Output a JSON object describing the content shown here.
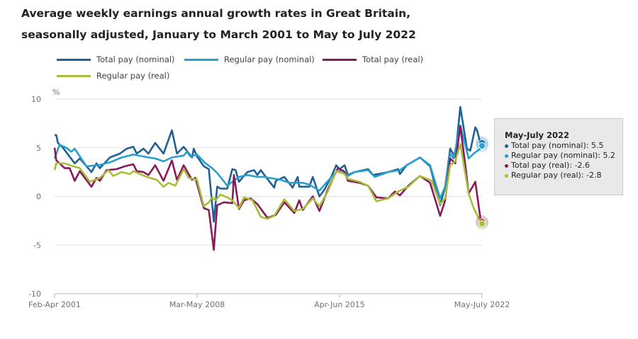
{
  "title": "Average weekly earnings annual growth rates in Great Britain, seasonally adjusted, January to March 2001 to May to July 2022",
  "chart_data": {
    "type": "line",
    "title": "Average weekly earnings annual growth rates in Great Britain, seasonally adjusted, January to March 2001 to May to July 2022",
    "ylabel": "%",
    "ylim": [
      -10,
      10
    ],
    "yticks": [
      10,
      5,
      0,
      -5,
      -10
    ],
    "xlim": [
      "2001-04",
      "2022-07"
    ],
    "xticks": [
      {
        "x": "2001-04",
        "label": "Feb-Apr 2001"
      },
      {
        "x": "2008-05",
        "label": "Mar-May 2008"
      },
      {
        "x": "2015-06",
        "label": "Apr-Jun 2015"
      },
      {
        "x": "2022-07",
        "label": "May-July 2022"
      }
    ],
    "grid": "horizontal",
    "legend": "top",
    "series": [
      {
        "name": "Total pay (nominal)",
        "color": "#206095",
        "points": [
          [
            "2001-04",
            6.3
          ],
          [
            "2001-05",
            6.3
          ],
          [
            "2001-06",
            5.5
          ],
          [
            "2001-09",
            5.0
          ],
          [
            "2002-04",
            3.4
          ],
          [
            "2002-07",
            3.9
          ],
          [
            "2003-02",
            2.5
          ],
          [
            "2003-05",
            3.4
          ],
          [
            "2003-07",
            2.9
          ],
          [
            "2004-01",
            4.0
          ],
          [
            "2004-07",
            4.4
          ],
          [
            "2004-11",
            4.9
          ],
          [
            "2005-03",
            5.1
          ],
          [
            "2005-05",
            4.4
          ],
          [
            "2005-09",
            4.9
          ],
          [
            "2005-12",
            4.4
          ],
          [
            "2006-04",
            5.5
          ],
          [
            "2006-09",
            4.4
          ],
          [
            "2007-02",
            6.8
          ],
          [
            "2007-05",
            4.4
          ],
          [
            "2007-09",
            5.1
          ],
          [
            "2008-02",
            4.0
          ],
          [
            "2008-03",
            4.9
          ],
          [
            "2008-05",
            4.1
          ],
          [
            "2008-09",
            3.1
          ],
          [
            "2008-12",
            2.8
          ],
          [
            "2009-03",
            -2.6
          ],
          [
            "2009-05",
            1.0
          ],
          [
            "2009-07",
            0.8
          ],
          [
            "2009-11",
            0.8
          ],
          [
            "2010-02",
            2.8
          ],
          [
            "2010-04",
            2.7
          ],
          [
            "2010-06",
            1.5
          ],
          [
            "2010-11",
            2.5
          ],
          [
            "2011-03",
            2.7
          ],
          [
            "2011-05",
            2.2
          ],
          [
            "2011-07",
            2.7
          ],
          [
            "2011-10",
            2.0
          ],
          [
            "2012-03",
            0.9
          ],
          [
            "2012-04",
            1.6
          ],
          [
            "2012-09",
            2.0
          ],
          [
            "2013-02",
            0.9
          ],
          [
            "2013-05",
            2.0
          ],
          [
            "2013-06",
            1.0
          ],
          [
            "2013-12",
            1.0
          ],
          [
            "2014-02",
            2.0
          ],
          [
            "2014-06",
            0.0
          ],
          [
            "2014-09",
            0.7
          ],
          [
            "2015-01",
            2.0
          ],
          [
            "2015-04",
            3.2
          ],
          [
            "2015-06",
            2.8
          ],
          [
            "2015-09",
            3.2
          ],
          [
            "2015-11",
            2.2
          ],
          [
            "2016-03",
            2.5
          ],
          [
            "2016-11",
            2.8
          ],
          [
            "2017-02",
            2.2
          ],
          [
            "2017-11",
            2.5
          ],
          [
            "2018-05",
            2.8
          ],
          [
            "2018-06",
            2.3
          ],
          [
            "2018-10",
            3.2
          ],
          [
            "2019-06",
            4.0
          ],
          [
            "2019-12",
            3.1
          ],
          [
            "2020-06",
            -0.9
          ],
          [
            "2020-09",
            1.0
          ],
          [
            "2020-12",
            4.9
          ],
          [
            "2021-03",
            4.0
          ],
          [
            "2021-06",
            9.2
          ],
          [
            "2021-10",
            4.9
          ],
          [
            "2021-12",
            4.7
          ],
          [
            "2022-03",
            7.1
          ],
          [
            "2022-04",
            6.8
          ],
          [
            "2022-06",
            5.5
          ],
          [
            "2022-07",
            5.5
          ]
        ]
      },
      {
        "name": "Regular pay (nominal)",
        "color": "#27a0cc",
        "points": [
          [
            "2001-04",
            3.9
          ],
          [
            "2001-07",
            5.3
          ],
          [
            "2001-11",
            5.0
          ],
          [
            "2002-02",
            4.6
          ],
          [
            "2002-04",
            4.9
          ],
          [
            "2002-11",
            3.1
          ],
          [
            "2003-06",
            3.2
          ],
          [
            "2004-01",
            3.5
          ],
          [
            "2004-08",
            4.0
          ],
          [
            "2005-03",
            4.3
          ],
          [
            "2005-12",
            4.0
          ],
          [
            "2006-04",
            3.9
          ],
          [
            "2006-09",
            3.6
          ],
          [
            "2007-02",
            4.0
          ],
          [
            "2007-09",
            4.2
          ],
          [
            "2007-11",
            4.6
          ],
          [
            "2008-01",
            4.1
          ],
          [
            "2008-05",
            4.3
          ],
          [
            "2008-10",
            3.4
          ],
          [
            "2009-02",
            2.9
          ],
          [
            "2009-05",
            2.4
          ],
          [
            "2009-11",
            1.1
          ],
          [
            "2010-02",
            1.5
          ],
          [
            "2010-06",
            2.0
          ],
          [
            "2010-11",
            2.2
          ],
          [
            "2011-05",
            2.0
          ],
          [
            "2011-09",
            2.0
          ],
          [
            "2012-07",
            1.7
          ],
          [
            "2012-12",
            1.4
          ],
          [
            "2013-08",
            1.4
          ],
          [
            "2013-12",
            1.2
          ],
          [
            "2014-06",
            0.6
          ],
          [
            "2014-10",
            1.4
          ],
          [
            "2015-04",
            2.5
          ],
          [
            "2015-08",
            2.7
          ],
          [
            "2015-11",
            2.1
          ],
          [
            "2016-03",
            2.5
          ],
          [
            "2016-11",
            2.7
          ],
          [
            "2017-03",
            2.0
          ],
          [
            "2017-11",
            2.5
          ],
          [
            "2018-06",
            2.7
          ],
          [
            "2018-10",
            3.2
          ],
          [
            "2019-06",
            4.0
          ],
          [
            "2019-12",
            3.2
          ],
          [
            "2020-06",
            -0.2
          ],
          [
            "2020-09",
            1.0
          ],
          [
            "2020-12",
            4.4
          ],
          [
            "2021-02",
            3.9
          ],
          [
            "2021-06",
            7.3
          ],
          [
            "2021-11",
            3.9
          ],
          [
            "2022-02",
            4.4
          ],
          [
            "2022-06",
            4.9
          ],
          [
            "2022-07",
            5.2
          ]
        ]
      },
      {
        "name": "Total pay (real)",
        "color": "#871a5b",
        "points": [
          [
            "2001-04",
            5.0
          ],
          [
            "2001-05",
            3.7
          ],
          [
            "2001-10",
            2.9
          ],
          [
            "2002-01",
            2.9
          ],
          [
            "2002-04",
            1.6
          ],
          [
            "2002-07",
            2.6
          ],
          [
            "2003-02",
            1.0
          ],
          [
            "2003-05",
            1.9
          ],
          [
            "2003-07",
            1.6
          ],
          [
            "2003-11",
            2.7
          ],
          [
            "2004-05",
            2.8
          ],
          [
            "2004-10",
            3.1
          ],
          [
            "2005-03",
            3.3
          ],
          [
            "2005-05",
            2.6
          ],
          [
            "2005-09",
            2.5
          ],
          [
            "2005-12",
            2.2
          ],
          [
            "2006-04",
            3.2
          ],
          [
            "2006-09",
            1.6
          ],
          [
            "2007-02",
            3.7
          ],
          [
            "2007-05",
            1.7
          ],
          [
            "2007-09",
            3.2
          ],
          [
            "2008-02",
            1.7
          ],
          [
            "2008-04",
            1.9
          ],
          [
            "2008-09",
            -1.2
          ],
          [
            "2008-12",
            -1.4
          ],
          [
            "2009-03",
            -5.5
          ],
          [
            "2009-05",
            -0.9
          ],
          [
            "2009-09",
            -0.6
          ],
          [
            "2010-02",
            -0.7
          ],
          [
            "2010-03",
            2.2
          ],
          [
            "2010-06",
            -1.3
          ],
          [
            "2010-09",
            -0.4
          ],
          [
            "2011-01",
            -0.2
          ],
          [
            "2011-05",
            -0.8
          ],
          [
            "2011-11",
            -2.2
          ],
          [
            "2012-04",
            -1.9
          ],
          [
            "2012-09",
            -0.6
          ],
          [
            "2013-03",
            -1.7
          ],
          [
            "2013-06",
            -0.4
          ],
          [
            "2013-08",
            -1.4
          ],
          [
            "2014-02",
            0.0
          ],
          [
            "2014-06",
            -1.5
          ],
          [
            "2014-11",
            0.7
          ],
          [
            "2015-05",
            2.9
          ],
          [
            "2015-09",
            2.5
          ],
          [
            "2015-11",
            1.6
          ],
          [
            "2016-06",
            1.4
          ],
          [
            "2016-11",
            1.1
          ],
          [
            "2017-04",
            -0.1
          ],
          [
            "2017-11",
            -0.2
          ],
          [
            "2018-03",
            0.5
          ],
          [
            "2018-06",
            0.1
          ],
          [
            "2018-11",
            1.1
          ],
          [
            "2019-06",
            2.1
          ],
          [
            "2019-12",
            1.4
          ],
          [
            "2020-06",
            -2.0
          ],
          [
            "2020-09",
            -0.4
          ],
          [
            "2020-12",
            3.9
          ],
          [
            "2021-03",
            3.4
          ],
          [
            "2021-06",
            7.2
          ],
          [
            "2021-09",
            3.2
          ],
          [
            "2021-11",
            0.3
          ],
          [
            "2022-03",
            1.5
          ],
          [
            "2022-06",
            -2.2
          ],
          [
            "2022-07",
            -2.6
          ]
        ]
      },
      {
        "name": "Regular pay (real)",
        "color": "#a8bd3a",
        "points": [
          [
            "2001-04",
            2.7
          ],
          [
            "2001-05",
            3.4
          ],
          [
            "2001-10",
            3.4
          ],
          [
            "2002-03",
            3.1
          ],
          [
            "2002-07",
            2.9
          ],
          [
            "2003-01",
            1.5
          ],
          [
            "2003-07",
            1.9
          ],
          [
            "2003-12",
            2.7
          ],
          [
            "2004-03",
            2.1
          ],
          [
            "2004-08",
            2.5
          ],
          [
            "2005-01",
            2.3
          ],
          [
            "2005-03",
            2.6
          ],
          [
            "2005-11",
            2.0
          ],
          [
            "2006-05",
            1.7
          ],
          [
            "2006-09",
            1.0
          ],
          [
            "2006-12",
            1.4
          ],
          [
            "2007-04",
            1.1
          ],
          [
            "2007-09",
            2.8
          ],
          [
            "2007-12",
            1.9
          ],
          [
            "2008-05",
            1.7
          ],
          [
            "2008-09",
            -1.0
          ],
          [
            "2008-12",
            -0.6
          ],
          [
            "2009-02",
            -0.1
          ],
          [
            "2009-04",
            -0.4
          ],
          [
            "2009-07",
            0.2
          ],
          [
            "2009-11",
            -0.1
          ],
          [
            "2010-02",
            -0.4
          ],
          [
            "2010-06",
            -1.2
          ],
          [
            "2010-09",
            -0.1
          ],
          [
            "2011-02",
            -0.4
          ],
          [
            "2011-07",
            -2.1
          ],
          [
            "2011-11",
            -2.3
          ],
          [
            "2012-03",
            -2.0
          ],
          [
            "2012-09",
            -0.3
          ],
          [
            "2013-03",
            -1.5
          ],
          [
            "2013-08",
            -1.3
          ],
          [
            "2014-02",
            -0.2
          ],
          [
            "2014-06",
            -1.0
          ],
          [
            "2014-11",
            0.5
          ],
          [
            "2015-04",
            2.6
          ],
          [
            "2015-09",
            2.3
          ],
          [
            "2015-11",
            1.8
          ],
          [
            "2016-06",
            1.5
          ],
          [
            "2016-11",
            1.1
          ],
          [
            "2017-04",
            -0.5
          ],
          [
            "2017-11",
            -0.2
          ],
          [
            "2018-05",
            0.5
          ],
          [
            "2018-11",
            1.0
          ],
          [
            "2019-06",
            2.1
          ],
          [
            "2020-01",
            1.6
          ],
          [
            "2020-06",
            -0.8
          ],
          [
            "2020-09",
            -0.2
          ],
          [
            "2020-12",
            3.2
          ],
          [
            "2021-03",
            3.6
          ],
          [
            "2021-06",
            5.4
          ],
          [
            "2021-11",
            0.3
          ],
          [
            "2022-02",
            -1.2
          ],
          [
            "2022-06",
            -2.6
          ],
          [
            "2022-07",
            -2.8
          ]
        ]
      }
    ],
    "tooltip": {
      "title": "May-July 2022",
      "rows": [
        "Total pay (nominal): 5.5",
        "Regular pay (nominal): 5.2",
        "Total pay (real): -2.6",
        "Regular pay (real): -2.8"
      ]
    }
  }
}
